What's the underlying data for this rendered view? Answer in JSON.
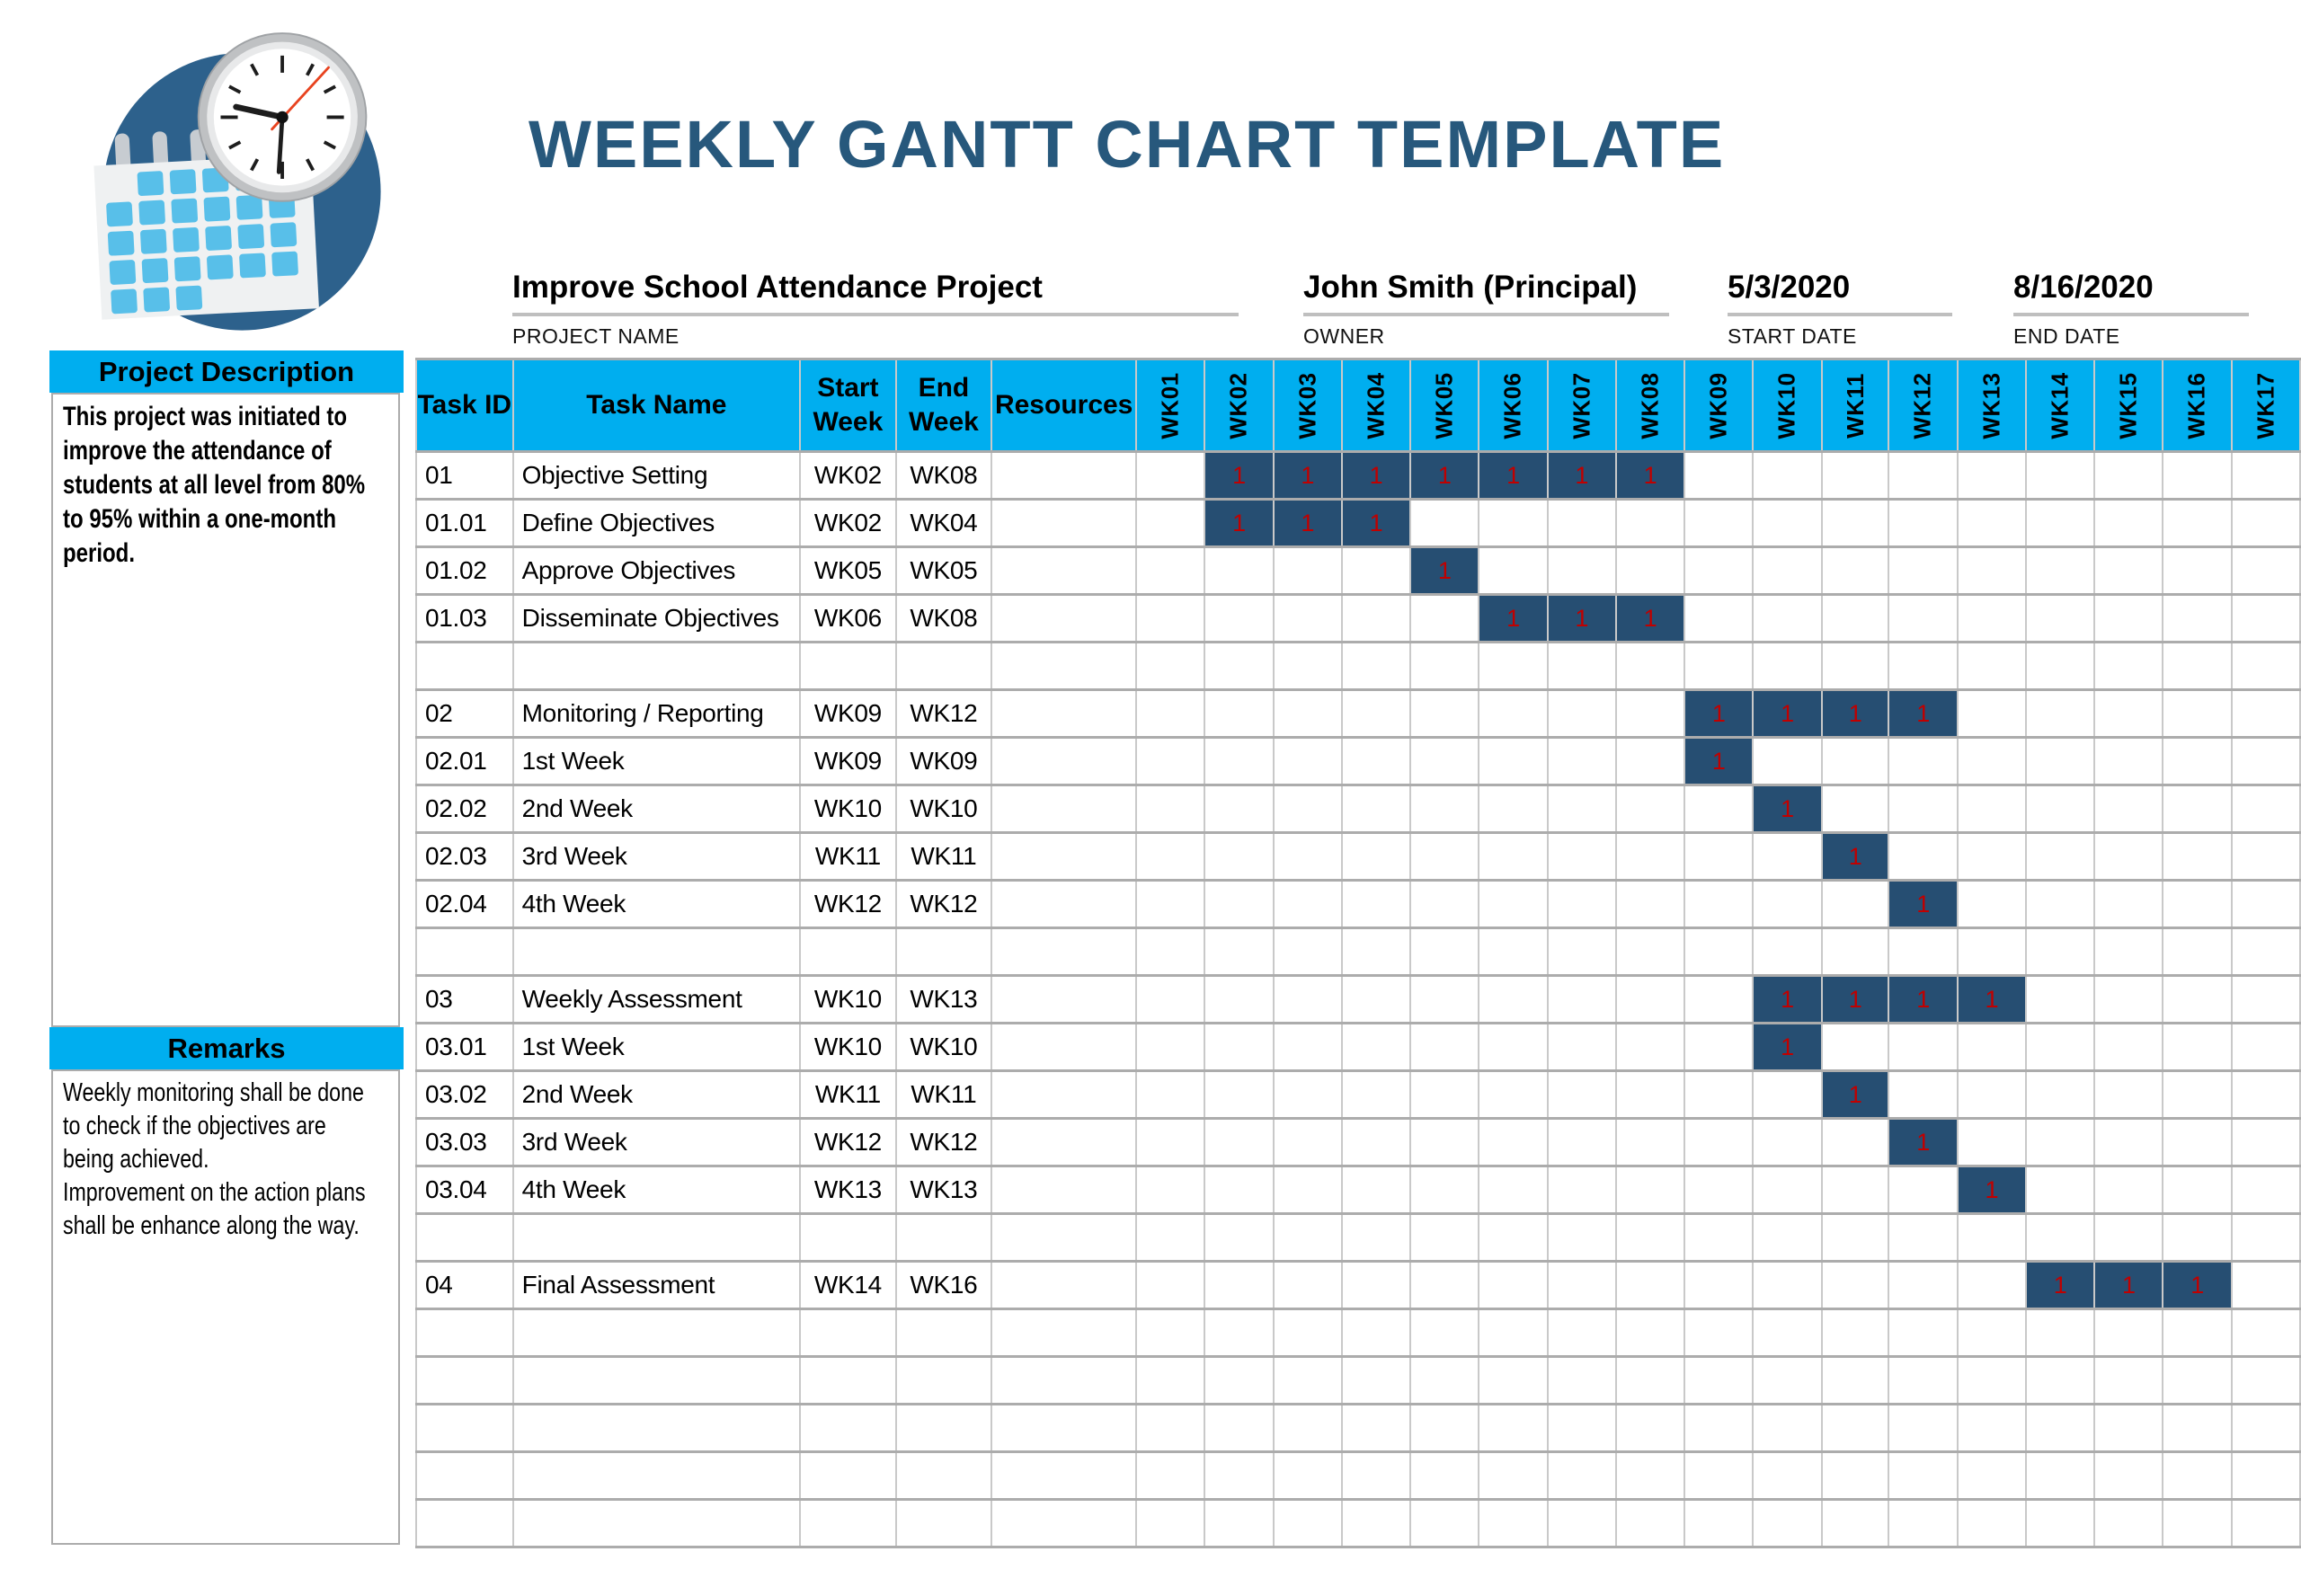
{
  "title": "WEEKLY GANTT CHART TEMPLATE",
  "logo": {
    "name": "calendar-clock-logo"
  },
  "fields": {
    "project_name": {
      "value": "Improve School Attendance Project",
      "label": "PROJECT NAME"
    },
    "owner": {
      "value": "John Smith (Principal)",
      "label": "OWNER"
    },
    "start_date": {
      "value": "5/3/2020",
      "label": "START DATE"
    },
    "end_date": {
      "value": "8/16/2020",
      "label": "END DATE"
    }
  },
  "sidebar": {
    "description_header": "Project Description",
    "description_text": "This project was initiated to\nimprove the attendance of\nstudents at all level from 80%\nto 95% within a one-month\nperiod.",
    "remarks_header": "Remarks",
    "remarks_text": "Weekly monitoring shall be done\nto check if the objectives are\nbeing achieved.\nImprovement on the action plans\nshall be enhance along the way."
  },
  "gantt": {
    "headers": {
      "task_id": "Task ID",
      "task_name": "Task Name",
      "start_week": [
        "Start",
        "Week"
      ],
      "end_week": [
        "End",
        "Week"
      ],
      "resources": "Resources"
    },
    "weeks": [
      "WK01",
      "WK02",
      "WK03",
      "WK04",
      "WK05",
      "WK06",
      "WK07",
      "WK08",
      "WK09",
      "WK10",
      "WK11",
      "WK12",
      "WK13",
      "WK14",
      "WK15",
      "WK16",
      "WK17"
    ],
    "bar_marker": "1",
    "row_layout": [
      0,
      1,
      2,
      3,
      null,
      4,
      5,
      6,
      7,
      8,
      null,
      9,
      10,
      11,
      12,
      13,
      null,
      14,
      null,
      null,
      null,
      null,
      null
    ]
  },
  "chart_data": {
    "type": "table",
    "subtype": "gantt",
    "title": "WEEKLY GANTT CHART TEMPLATE",
    "project": "Improve School Attendance Project",
    "owner": "John Smith (Principal)",
    "start_date": "5/3/2020",
    "end_date": "8/16/2020",
    "week_axis": [
      "WK01",
      "WK02",
      "WK03",
      "WK04",
      "WK05",
      "WK06",
      "WK07",
      "WK08",
      "WK09",
      "WK10",
      "WK11",
      "WK12",
      "WK13",
      "WK14",
      "WK15",
      "WK16",
      "WK17"
    ],
    "tasks": [
      {
        "id": "01",
        "name": "Objective Setting",
        "start_week": "WK02",
        "end_week": "WK08",
        "start_index": 2,
        "end_index": 8,
        "resources": ""
      },
      {
        "id": "01.01",
        "name": "Define Objectives",
        "start_week": "WK02",
        "end_week": "WK04",
        "start_index": 2,
        "end_index": 4,
        "resources": ""
      },
      {
        "id": "01.02",
        "name": "Approve Objectives",
        "start_week": "WK05",
        "end_week": "WK05",
        "start_index": 5,
        "end_index": 5,
        "resources": ""
      },
      {
        "id": "01.03",
        "name": "Disseminate Objectives",
        "start_week": "WK06",
        "end_week": "WK08",
        "start_index": 6,
        "end_index": 8,
        "resources": ""
      },
      {
        "id": "02",
        "name": "Monitoring / Reporting",
        "start_week": "WK09",
        "end_week": "WK12",
        "start_index": 9,
        "end_index": 12,
        "resources": ""
      },
      {
        "id": "02.01",
        "name": "1st Week",
        "start_week": "WK09",
        "end_week": "WK09",
        "start_index": 9,
        "end_index": 9,
        "resources": ""
      },
      {
        "id": "02.02",
        "name": "2nd Week",
        "start_week": "WK10",
        "end_week": "WK10",
        "start_index": 10,
        "end_index": 10,
        "resources": ""
      },
      {
        "id": "02.03",
        "name": "3rd Week",
        "start_week": "WK11",
        "end_week": "WK11",
        "start_index": 11,
        "end_index": 11,
        "resources": ""
      },
      {
        "id": "02.04",
        "name": "4th Week",
        "start_week": "WK12",
        "end_week": "WK12",
        "start_index": 12,
        "end_index": 12,
        "resources": ""
      },
      {
        "id": "03",
        "name": "Weekly Assessment",
        "start_week": "WK10",
        "end_week": "WK13",
        "start_index": 10,
        "end_index": 13,
        "resources": ""
      },
      {
        "id": "03.01",
        "name": "1st Week",
        "start_week": "WK10",
        "end_week": "WK10",
        "start_index": 10,
        "end_index": 10,
        "resources": ""
      },
      {
        "id": "03.02",
        "name": "2nd Week",
        "start_week": "WK11",
        "end_week": "WK11",
        "start_index": 11,
        "end_index": 11,
        "resources": ""
      },
      {
        "id": "03.03",
        "name": "3rd Week",
        "start_week": "WK12",
        "end_week": "WK12",
        "start_index": 12,
        "end_index": 12,
        "resources": ""
      },
      {
        "id": "03.04",
        "name": "4th Week",
        "start_week": "WK13",
        "end_week": "WK13",
        "start_index": 13,
        "end_index": 13,
        "resources": ""
      },
      {
        "id": "04",
        "name": "Final Assessment",
        "start_week": "WK14",
        "end_week": "WK16",
        "start_index": 14,
        "end_index": 16,
        "resources": ""
      }
    ]
  },
  "colors": {
    "cyan": "#00AEEF",
    "navy": "#264E72",
    "red": "#C00000",
    "title_blue": "#27587C",
    "grid_h": "#ACACAC",
    "grid_v": "#C9C9C9",
    "underline": "#BFBFBF",
    "logo_circle": "#2D618C",
    "logo_square": "#58BFE9",
    "box_border": "#ACACAC"
  }
}
